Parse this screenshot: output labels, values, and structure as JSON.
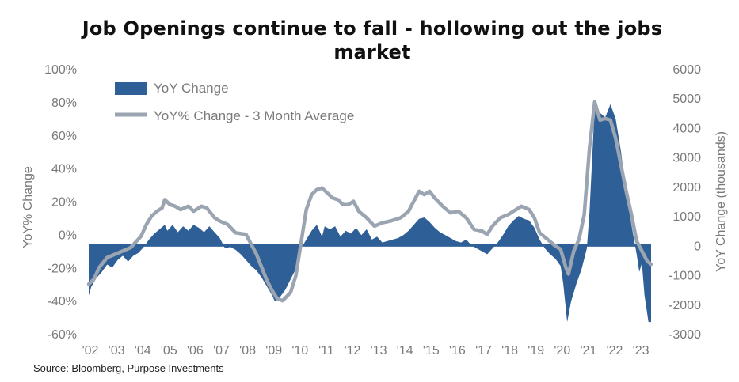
{
  "title_line1": "Job Openings continue to fall - hollowing out the jobs",
  "title_line2": "market",
  "source": "Source: Bloomberg, Purpose Investments",
  "chart_data": {
    "type": "bar+line",
    "x_tick_labels": [
      "'02",
      "'03",
      "'04",
      "'05",
      "'06",
      "'07",
      "'08",
      "'09",
      "'10",
      "'11",
      "'12",
      "'13",
      "'14",
      "'15",
      "'16",
      "'17",
      "'18",
      "'19",
      "'20",
      "'21",
      "'22",
      "'23"
    ],
    "x_range": [
      2002.0,
      2023.45
    ],
    "left_axis": {
      "label": "YoY% Change",
      "ylim": [
        -60,
        100
      ],
      "ticks": [
        -60,
        -40,
        -20,
        0,
        20,
        40,
        60,
        80,
        100
      ],
      "tick_labels": [
        "-60%",
        "-40%",
        "-20%",
        "0%",
        "20%",
        "40%",
        "60%",
        "80%",
        "100%"
      ]
    },
    "right_axis": {
      "label": "YoY Change (thousands)",
      "ylim": [
        -3000,
        6000
      ],
      "ticks": [
        -3000,
        -2000,
        -1000,
        0,
        1000,
        2000,
        3000,
        4000,
        5000,
        6000
      ],
      "tick_labels": [
        "-3000",
        "-2000",
        "-1000",
        "0",
        "1000",
        "2000",
        "3000",
        "4000",
        "5000",
        "6000"
      ]
    },
    "series": [
      {
        "name": "YoY Change",
        "kind": "area",
        "axis": "right",
        "color": "#2f5f97",
        "points": [
          [
            2002.0,
            -1700
          ],
          [
            2002.1,
            -1400
          ],
          [
            2002.3,
            -1100
          ],
          [
            2002.5,
            -900
          ],
          [
            2002.7,
            -650
          ],
          [
            2002.9,
            -750
          ],
          [
            2003.1,
            -500
          ],
          [
            2003.3,
            -350
          ],
          [
            2003.5,
            -550
          ],
          [
            2003.7,
            -350
          ],
          [
            2003.9,
            -250
          ],
          [
            2004.1,
            -50
          ],
          [
            2004.3,
            200
          ],
          [
            2004.5,
            400
          ],
          [
            2004.7,
            550
          ],
          [
            2004.9,
            700
          ],
          [
            2005.0,
            500
          ],
          [
            2005.2,
            700
          ],
          [
            2005.4,
            450
          ],
          [
            2005.6,
            650
          ],
          [
            2005.8,
            500
          ],
          [
            2006.0,
            700
          ],
          [
            2006.2,
            600
          ],
          [
            2006.4,
            450
          ],
          [
            2006.6,
            650
          ],
          [
            2006.8,
            450
          ],
          [
            2007.0,
            250
          ],
          [
            2007.2,
            -100
          ],
          [
            2007.4,
            -50
          ],
          [
            2007.6,
            -150
          ],
          [
            2007.8,
            -300
          ],
          [
            2008.0,
            -500
          ],
          [
            2008.2,
            -700
          ],
          [
            2008.4,
            -850
          ],
          [
            2008.6,
            -1100
          ],
          [
            2008.8,
            -1400
          ],
          [
            2009.0,
            -1700
          ],
          [
            2009.1,
            -1900
          ],
          [
            2009.3,
            -1750
          ],
          [
            2009.5,
            -1500
          ],
          [
            2009.7,
            -1150
          ],
          [
            2009.9,
            -800
          ],
          [
            2010.1,
            -100
          ],
          [
            2010.3,
            200
          ],
          [
            2010.5,
            500
          ],
          [
            2010.7,
            700
          ],
          [
            2010.9,
            300
          ],
          [
            2011.0,
            650
          ],
          [
            2011.2,
            550
          ],
          [
            2011.4,
            650
          ],
          [
            2011.6,
            300
          ],
          [
            2011.8,
            500
          ],
          [
            2012.0,
            400
          ],
          [
            2012.2,
            600
          ],
          [
            2012.4,
            350
          ],
          [
            2012.6,
            550
          ],
          [
            2012.8,
            200
          ],
          [
            2013.0,
            300
          ],
          [
            2013.2,
            100
          ],
          [
            2013.4,
            150
          ],
          [
            2013.6,
            200
          ],
          [
            2013.8,
            250
          ],
          [
            2014.0,
            350
          ],
          [
            2014.2,
            500
          ],
          [
            2014.4,
            700
          ],
          [
            2014.6,
            900
          ],
          [
            2014.8,
            950
          ],
          [
            2015.0,
            800
          ],
          [
            2015.2,
            600
          ],
          [
            2015.4,
            450
          ],
          [
            2015.6,
            350
          ],
          [
            2015.8,
            250
          ],
          [
            2016.0,
            150
          ],
          [
            2016.2,
            100
          ],
          [
            2016.4,
            200
          ],
          [
            2016.6,
            0
          ],
          [
            2016.8,
            -100
          ],
          [
            2017.0,
            -200
          ],
          [
            2017.2,
            -300
          ],
          [
            2017.4,
            -100
          ],
          [
            2017.6,
            100
          ],
          [
            2017.8,
            350
          ],
          [
            2018.0,
            650
          ],
          [
            2018.2,
            850
          ],
          [
            2018.4,
            1000
          ],
          [
            2018.6,
            900
          ],
          [
            2018.8,
            850
          ],
          [
            2019.0,
            600
          ],
          [
            2019.2,
            200
          ],
          [
            2019.4,
            -100
          ],
          [
            2019.6,
            -300
          ],
          [
            2019.8,
            -450
          ],
          [
            2020.0,
            -700
          ],
          [
            2020.1,
            -1300
          ],
          [
            2020.25,
            -2600
          ],
          [
            2020.4,
            -1900
          ],
          [
            2020.6,
            -1300
          ],
          [
            2020.8,
            -800
          ],
          [
            2021.0,
            -100
          ],
          [
            2021.1,
            1100
          ],
          [
            2021.3,
            4700
          ],
          [
            2021.5,
            4500
          ],
          [
            2021.7,
            4350
          ],
          [
            2021.9,
            4800
          ],
          [
            2022.1,
            4300
          ],
          [
            2022.3,
            3200
          ],
          [
            2022.5,
            1800
          ],
          [
            2022.7,
            700
          ],
          [
            2022.9,
            -300
          ],
          [
            2023.0,
            -900
          ],
          [
            2023.1,
            -600
          ],
          [
            2023.2,
            -1700
          ],
          [
            2023.35,
            -2600
          ],
          [
            2023.45,
            -2600
          ]
        ]
      },
      {
        "name": "YoY% Change - 3 Month Average",
        "kind": "line",
        "axis": "left",
        "color": "#9aa5b1",
        "points": [
          [
            2002.0,
            -30
          ],
          [
            2002.2,
            -27
          ],
          [
            2002.4,
            -20
          ],
          [
            2002.7,
            -14
          ],
          [
            2003.0,
            -12
          ],
          [
            2003.3,
            -10
          ],
          [
            2003.6,
            -8
          ],
          [
            2004.0,
            -1
          ],
          [
            2004.2,
            6
          ],
          [
            2004.4,
            11
          ],
          [
            2004.6,
            14
          ],
          [
            2004.8,
            16
          ],
          [
            2004.9,
            21
          ],
          [
            2005.1,
            18
          ],
          [
            2005.3,
            17
          ],
          [
            2005.5,
            15
          ],
          [
            2005.8,
            17
          ],
          [
            2006.0,
            14
          ],
          [
            2006.3,
            17
          ],
          [
            2006.5,
            16
          ],
          [
            2006.8,
            10
          ],
          [
            2007.0,
            8
          ],
          [
            2007.3,
            6
          ],
          [
            2007.6,
            1
          ],
          [
            2008.0,
            0
          ],
          [
            2008.2,
            -6
          ],
          [
            2008.4,
            -12
          ],
          [
            2008.6,
            -20
          ],
          [
            2008.8,
            -28
          ],
          [
            2009.0,
            -34
          ],
          [
            2009.2,
            -39
          ],
          [
            2009.4,
            -40
          ],
          [
            2009.7,
            -35
          ],
          [
            2009.9,
            -25
          ],
          [
            2010.1,
            -5
          ],
          [
            2010.3,
            15
          ],
          [
            2010.5,
            24
          ],
          [
            2010.7,
            27
          ],
          [
            2010.9,
            28
          ],
          [
            2011.1,
            25
          ],
          [
            2011.3,
            22
          ],
          [
            2011.5,
            21
          ],
          [
            2011.7,
            18
          ],
          [
            2011.9,
            18
          ],
          [
            2012.1,
            20
          ],
          [
            2012.3,
            14
          ],
          [
            2012.6,
            10
          ],
          [
            2012.9,
            5
          ],
          [
            2013.2,
            7
          ],
          [
            2013.5,
            8
          ],
          [
            2013.9,
            10
          ],
          [
            2014.2,
            14
          ],
          [
            2014.4,
            20
          ],
          [
            2014.6,
            26
          ],
          [
            2014.8,
            24
          ],
          [
            2015.0,
            26
          ],
          [
            2015.2,
            22
          ],
          [
            2015.5,
            17
          ],
          [
            2015.8,
            13
          ],
          [
            2016.1,
            14
          ],
          [
            2016.4,
            10
          ],
          [
            2016.7,
            3
          ],
          [
            2017.0,
            2
          ],
          [
            2017.2,
            0
          ],
          [
            2017.4,
            5
          ],
          [
            2017.7,
            10
          ],
          [
            2018.0,
            12
          ],
          [
            2018.2,
            14
          ],
          [
            2018.5,
            17
          ],
          [
            2018.8,
            15
          ],
          [
            2019.0,
            10
          ],
          [
            2019.2,
            1
          ],
          [
            2019.5,
            -3
          ],
          [
            2019.8,
            -7
          ],
          [
            2020.0,
            -9
          ],
          [
            2020.2,
            -20
          ],
          [
            2020.3,
            -24
          ],
          [
            2020.5,
            -10
          ],
          [
            2020.7,
            -3
          ],
          [
            2020.9,
            12
          ],
          [
            2021.1,
            52
          ],
          [
            2021.3,
            80
          ],
          [
            2021.5,
            69
          ],
          [
            2021.7,
            70
          ],
          [
            2021.9,
            69
          ],
          [
            2022.1,
            58
          ],
          [
            2022.3,
            42
          ],
          [
            2022.5,
            26
          ],
          [
            2022.7,
            12
          ],
          [
            2022.9,
            -4
          ],
          [
            2023.1,
            -10
          ],
          [
            2023.3,
            -16
          ],
          [
            2023.45,
            -18
          ]
        ]
      }
    ],
    "legend_position": "top-left",
    "grid": false
  }
}
